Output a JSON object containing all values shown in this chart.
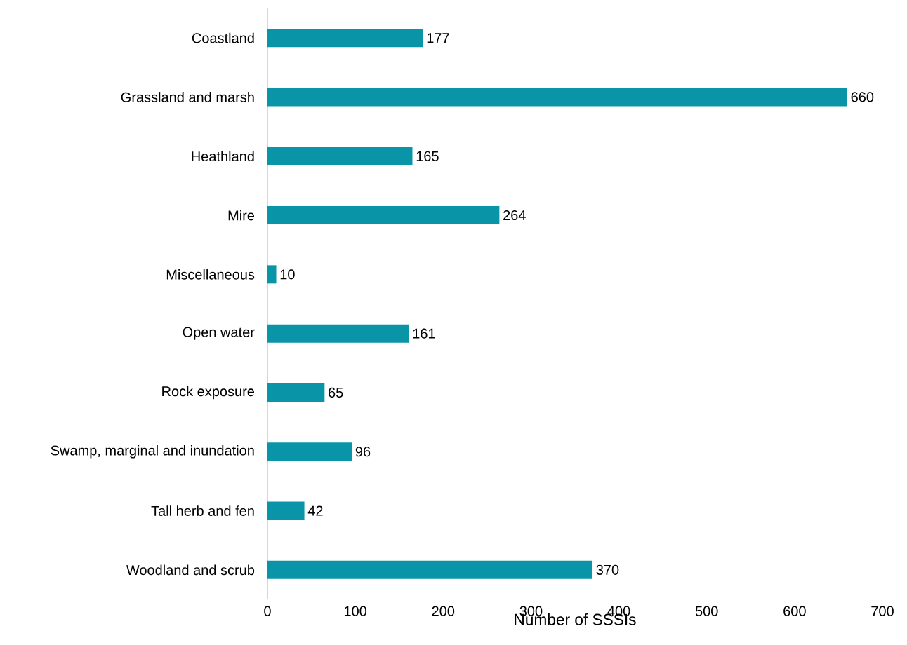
{
  "chart_data": {
    "type": "bar",
    "orientation": "horizontal",
    "xlabel": "Number of SSSIs",
    "categories": [
      "Coastland",
      "Grassland and marsh",
      "Heathland",
      "Mire",
      "Miscellaneous",
      "Open water",
      "Rock exposure",
      "Swamp, marginal and inundation",
      "Tall herb and fen",
      "Woodland and scrub"
    ],
    "values": [
      177,
      660,
      165,
      264,
      10,
      161,
      65,
      96,
      42,
      370
    ],
    "color": "#0a94a8",
    "data_labels": true,
    "grid": false,
    "xlim": [
      0,
      700
    ],
    "xticks": [
      0,
      100,
      200,
      300,
      400,
      500,
      600,
      700
    ]
  }
}
